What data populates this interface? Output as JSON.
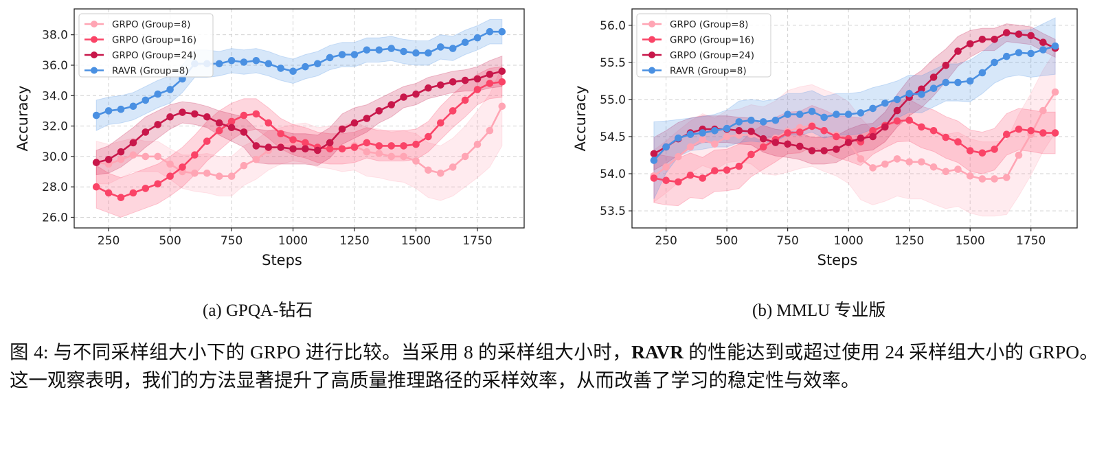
{
  "chart_data": [
    {
      "id": "a",
      "type": "line",
      "title": "",
      "subcaption": "(a) GPQA-钻石",
      "xlabel": "Steps",
      "ylabel": "Accuracy",
      "xlim": [
        110,
        1940
      ],
      "ylim": [
        25.3,
        39.7
      ],
      "xticks": [
        250,
        500,
        750,
        1000,
        1250,
        1500,
        1750
      ],
      "yticks": [
        26.0,
        28.0,
        30.0,
        32.0,
        34.0,
        36.0,
        38.0
      ],
      "ytick_labels": [
        "26.0",
        "28.0",
        "30.0",
        "32.0",
        "34.0",
        "36.0",
        "38.0"
      ],
      "grid": true,
      "legend_position": "top-left",
      "x": [
        200,
        250,
        300,
        350,
        400,
        450,
        500,
        550,
        600,
        650,
        700,
        750,
        800,
        850,
        900,
        950,
        1000,
        1050,
        1100,
        1150,
        1200,
        1250,
        1300,
        1350,
        1400,
        1450,
        1500,
        1550,
        1600,
        1650,
        1700,
        1750,
        1800,
        1850
      ],
      "series": [
        {
          "name": "GRPO (Group=8)",
          "color": "#FFA5B4",
          "band_opacity": 0.22,
          "values": [
            29.6,
            29.5,
            29.8,
            30.1,
            30.0,
            30.0,
            29.5,
            29.0,
            28.9,
            28.9,
            28.7,
            28.7,
            29.4,
            29.8,
            30.4,
            30.7,
            30.9,
            30.9,
            30.6,
            30.6,
            30.5,
            30.7,
            30.3,
            30.2,
            30.0,
            30.0,
            29.7,
            29.1,
            28.9,
            29.3,
            30.0,
            30.8,
            31.7,
            33.3
          ],
          "spread": [
            1.4,
            1.3,
            1.2,
            1.1,
            1.0,
            1.0,
            1.0,
            1.1,
            1.2,
            1.3,
            1.3,
            1.3,
            1.3,
            1.3,
            1.3,
            1.2,
            1.2,
            1.3,
            1.3,
            1.4,
            1.5,
            1.6,
            1.6,
            1.6,
            1.6,
            1.7,
            1.8,
            1.8,
            1.8,
            1.9,
            2.0,
            2.2,
            2.4,
            2.6
          ]
        },
        {
          "name": "GRPO (Group=16)",
          "color": "#FA4467",
          "band_opacity": 0.22,
          "values": [
            28.0,
            27.6,
            27.3,
            27.6,
            27.9,
            28.2,
            28.7,
            29.3,
            30.1,
            31.0,
            31.7,
            32.3,
            32.7,
            32.8,
            32.2,
            31.5,
            31.1,
            30.9,
            30.6,
            30.5,
            30.5,
            30.6,
            30.9,
            30.7,
            30.7,
            30.7,
            30.8,
            31.3,
            32.2,
            33.0,
            33.7,
            34.4,
            34.8,
            34.9
          ],
          "spread": [
            1.4,
            1.3,
            1.3,
            1.3,
            1.3,
            1.3,
            1.3,
            1.3,
            1.3,
            1.3,
            1.3,
            1.2,
            1.1,
            1.0,
            1.0,
            1.0,
            1.0,
            1.0,
            1.0,
            1.0,
            1.0,
            1.0,
            1.0,
            1.0,
            1.0,
            1.0,
            1.0,
            1.0,
            1.1,
            1.1,
            1.1,
            1.0,
            1.0,
            1.0
          ]
        },
        {
          "name": "GRPO (Group=24)",
          "color": "#C8174A",
          "band_opacity": 0.22,
          "values": [
            29.6,
            29.8,
            30.3,
            30.9,
            31.6,
            32.1,
            32.6,
            32.9,
            32.8,
            32.6,
            32.2,
            31.9,
            31.6,
            30.7,
            30.6,
            30.6,
            30.5,
            30.5,
            30.4,
            30.9,
            31.8,
            32.2,
            32.5,
            33.0,
            33.4,
            33.9,
            34.1,
            34.5,
            34.7,
            34.9,
            35.0,
            35.1,
            35.4,
            35.6
          ],
          "spread": [
            0.8,
            0.9,
            1.0,
            1.0,
            1.0,
            0.9,
            0.8,
            0.7,
            0.7,
            0.7,
            0.8,
            0.9,
            1.0,
            1.1,
            1.1,
            1.1,
            1.0,
            1.0,
            1.0,
            1.0,
            1.0,
            1.0,
            0.9,
            0.8,
            0.8,
            0.7,
            0.7,
            0.7,
            0.7,
            0.7,
            0.7,
            0.8,
            0.9,
            1.0
          ]
        },
        {
          "name": "RAVR (Group=8)",
          "color": "#4A90E2",
          "band_opacity": 0.22,
          "values": [
            32.7,
            33.0,
            33.1,
            33.3,
            33.7,
            34.1,
            34.4,
            35.1,
            36.1,
            36.1,
            36.1,
            36.3,
            36.2,
            36.3,
            36.1,
            35.8,
            35.6,
            35.9,
            36.1,
            36.5,
            36.7,
            36.7,
            37.0,
            37.0,
            37.1,
            36.9,
            36.8,
            36.8,
            37.2,
            37.1,
            37.5,
            37.8,
            38.2,
            38.2
          ],
          "spread": [
            1.0,
            0.9,
            0.9,
            0.9,
            0.9,
            0.9,
            0.9,
            0.9,
            0.9,
            0.9,
            0.8,
            0.8,
            0.8,
            0.8,
            0.8,
            0.8,
            0.8,
            0.8,
            0.8,
            0.8,
            0.8,
            0.8,
            0.8,
            0.8,
            0.8,
            0.8,
            0.8,
            0.8,
            0.8,
            0.8,
            0.8,
            0.8,
            0.8,
            0.8
          ]
        }
      ]
    },
    {
      "id": "b",
      "type": "line",
      "title": "",
      "subcaption": "(b) MMLU 专业版",
      "xlabel": "Steps",
      "ylabel": "Accuracy",
      "xlim": [
        110,
        1940
      ],
      "ylim": [
        53.27,
        56.22
      ],
      "xticks": [
        250,
        500,
        750,
        1000,
        1250,
        1500,
        1750
      ],
      "yticks": [
        53.5,
        54.0,
        54.5,
        55.0,
        55.5,
        56.0
      ],
      "ytick_labels": [
        "53.5",
        "54.0",
        "54.5",
        "55.0",
        "55.5",
        "56.0"
      ],
      "grid": true,
      "legend_position": "top-left",
      "x": [
        200,
        250,
        300,
        350,
        400,
        450,
        500,
        550,
        600,
        650,
        700,
        750,
        800,
        850,
        900,
        950,
        1000,
        1050,
        1100,
        1150,
        1200,
        1250,
        1300,
        1350,
        1400,
        1450,
        1500,
        1550,
        1600,
        1650,
        1700,
        1750,
        1800,
        1850
      ],
      "series": [
        {
          "name": "GRPO (Group=8)",
          "color": "#FFA5B4",
          "band_opacity": 0.22,
          "values": [
            53.97,
            54.09,
            54.23,
            54.36,
            54.46,
            54.4,
            54.5,
            54.52,
            54.53,
            54.45,
            54.48,
            54.57,
            54.62,
            54.65,
            54.58,
            54.52,
            54.42,
            54.2,
            54.08,
            54.13,
            54.2,
            54.16,
            54.16,
            54.09,
            54.03,
            54.06,
            53.97,
            53.93,
            53.93,
            53.95,
            54.25,
            54.53,
            54.85,
            55.1
          ],
          "spread": [
            0.35,
            0.35,
            0.35,
            0.35,
            0.35,
            0.35,
            0.35,
            0.35,
            0.4,
            0.45,
            0.5,
            0.55,
            0.55,
            0.55,
            0.55,
            0.55,
            0.55,
            0.55,
            0.5,
            0.5,
            0.5,
            0.5,
            0.5,
            0.5,
            0.5,
            0.5,
            0.5,
            0.5,
            0.5,
            0.5,
            0.55,
            0.55,
            0.55,
            0.55
          ]
        },
        {
          "name": "GRPO (Group=16)",
          "color": "#FA4467",
          "band_opacity": 0.22,
          "values": [
            53.94,
            53.91,
            53.89,
            53.98,
            53.94,
            54.04,
            54.05,
            54.1,
            54.26,
            54.36,
            54.46,
            54.55,
            54.56,
            54.64,
            54.58,
            54.5,
            54.47,
            54.43,
            54.58,
            54.65,
            54.71,
            54.72,
            54.63,
            54.58,
            54.49,
            54.43,
            54.31,
            54.28,
            54.33,
            54.53,
            54.6,
            54.58,
            54.55,
            54.55
          ],
          "spread": [
            0.33,
            0.33,
            0.32,
            0.3,
            0.28,
            0.28,
            0.28,
            0.3,
            0.3,
            0.3,
            0.3,
            0.28,
            0.28,
            0.28,
            0.28,
            0.28,
            0.3,
            0.32,
            0.32,
            0.3,
            0.28,
            0.28,
            0.28,
            0.28,
            0.28,
            0.28,
            0.28,
            0.28,
            0.28,
            0.28,
            0.28,
            0.28,
            0.28,
            0.28
          ]
        },
        {
          "name": "GRPO (Group=24)",
          "color": "#C8174A",
          "band_opacity": 0.22,
          "values": [
            54.27,
            54.36,
            54.47,
            54.55,
            54.6,
            54.6,
            54.6,
            54.58,
            54.57,
            54.47,
            54.42,
            54.4,
            54.37,
            54.31,
            54.31,
            54.33,
            54.42,
            54.48,
            54.5,
            54.63,
            54.85,
            55.03,
            55.14,
            55.3,
            55.46,
            55.65,
            55.75,
            55.81,
            55.81,
            55.9,
            55.88,
            55.86,
            55.77,
            55.69
          ],
          "spread": [
            0.22,
            0.22,
            0.22,
            0.2,
            0.18,
            0.18,
            0.18,
            0.18,
            0.18,
            0.18,
            0.18,
            0.18,
            0.18,
            0.18,
            0.18,
            0.18,
            0.18,
            0.18,
            0.18,
            0.2,
            0.22,
            0.25,
            0.25,
            0.25,
            0.22,
            0.2,
            0.18,
            0.15,
            0.15,
            0.12,
            0.12,
            0.12,
            0.12,
            0.12
          ]
        },
        {
          "name": "RAVR (Group=8)",
          "color": "#4A90E2",
          "band_opacity": 0.22,
          "values": [
            54.18,
            54.36,
            54.48,
            54.53,
            54.55,
            54.58,
            54.61,
            54.7,
            54.72,
            54.7,
            54.72,
            54.8,
            54.8,
            54.84,
            54.76,
            54.8,
            54.8,
            54.82,
            54.88,
            54.95,
            55.0,
            55.08,
            55.07,
            55.15,
            55.23,
            55.23,
            55.25,
            55.36,
            55.5,
            55.58,
            55.63,
            55.62,
            55.67,
            55.72
          ],
          "spread": [
            0.52,
            0.35,
            0.25,
            0.22,
            0.22,
            0.22,
            0.25,
            0.28,
            0.28,
            0.28,
            0.28,
            0.28,
            0.28,
            0.28,
            0.28,
            0.28,
            0.28,
            0.28,
            0.28,
            0.25,
            0.25,
            0.25,
            0.25,
            0.25,
            0.25,
            0.25,
            0.28,
            0.28,
            0.28,
            0.28,
            0.3,
            0.32,
            0.35,
            0.38
          ]
        }
      ]
    }
  ],
  "caption": {
    "label": "图 4:",
    "line_part1": "与不同采样组大小下的 GRPO 进行比较。当采用 8 的采样组大小时，",
    "bold": "RAVR",
    "line_part2": "的性能达到或超过使用 24 采样组大小的 GRPO。这一观察表明，我们的方法显著提升了高质量推理路径的采样效率，从而改善了学习的稳定性与效率。"
  }
}
